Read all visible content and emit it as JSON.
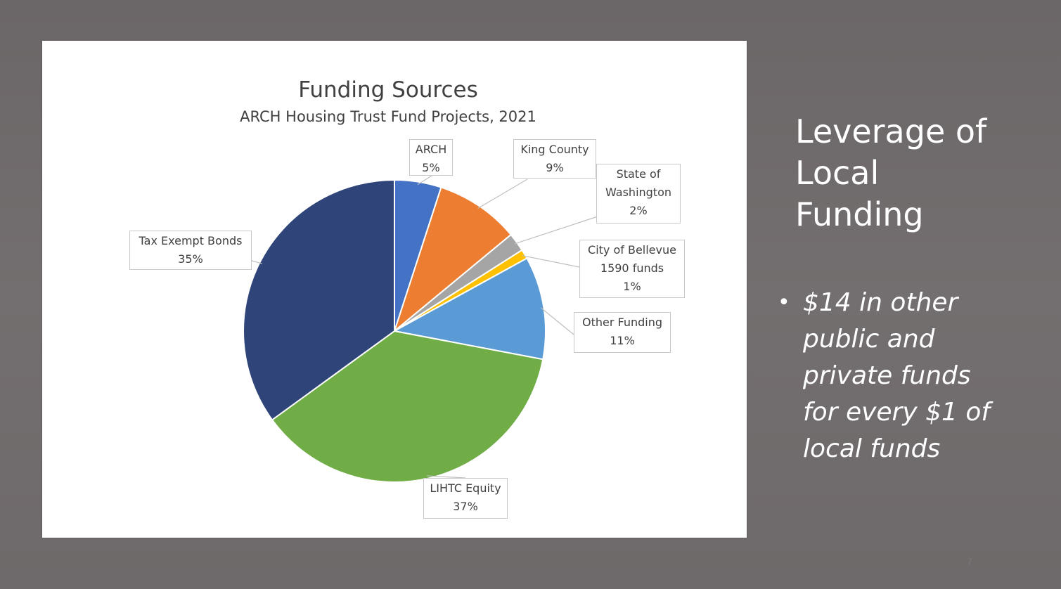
{
  "chart_data": {
    "type": "pie",
    "title": "Funding Sources",
    "subtitle": "ARCH Housing Trust Fund Projects, 2021",
    "slices": [
      {
        "name": "ARCH",
        "value": 5,
        "label": [
          "ARCH",
          "5%"
        ],
        "color": "#4472c4"
      },
      {
        "name": "King County",
        "value": 9,
        "label": [
          "King County",
          "9%"
        ],
        "color": "#ed7d31"
      },
      {
        "name": "State of Washington",
        "value": 2,
        "label": [
          "State of",
          "Washington",
          "2%"
        ],
        "color": "#a5a5a5"
      },
      {
        "name": "City of Bellevue 1590 funds",
        "value": 1,
        "label": [
          "City of Bellevue",
          "1590 funds",
          "1%"
        ],
        "color": "#ffc000"
      },
      {
        "name": "Other Funding",
        "value": 11,
        "label": [
          "Other Funding",
          "11%"
        ],
        "color": "#5b9bd5"
      },
      {
        "name": "LIHTC Equity",
        "value": 37,
        "label": [
          "LIHTC Equity",
          "37%"
        ],
        "color": "#70ad47"
      },
      {
        "name": "Tax Exempt Bonds",
        "value": 35,
        "label": [
          "Tax Exempt Bonds",
          "35%"
        ],
        "color": "#2f4479"
      }
    ]
  },
  "side": {
    "title_lines": [
      "Leverage of",
      "Local",
      "Funding"
    ],
    "bullet_symbol": "•",
    "bullet_lines": [
      "$14 in other",
      "public and",
      "private funds",
      "for every $1 of",
      "local funds"
    ]
  },
  "page_number": "7"
}
